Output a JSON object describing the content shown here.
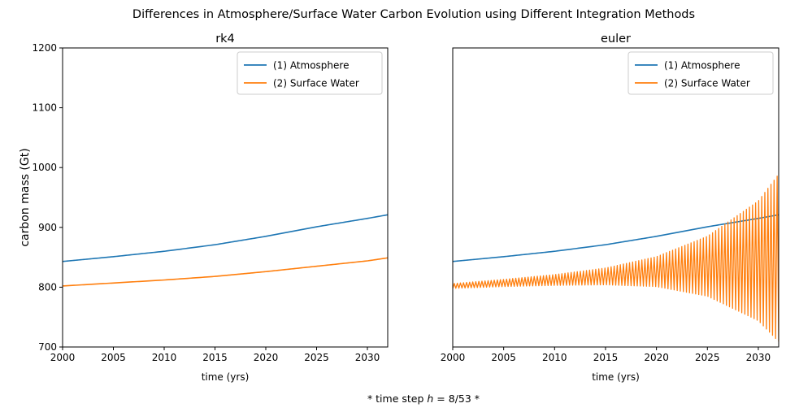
{
  "figure": {
    "suptitle": "Differences in Atmosphere/Surface Water Carbon Evolution using Different Integration Methods",
    "footnote_prefix": "* time step ",
    "footnote_h": "h",
    "footnote_suffix": " = 8/53 *"
  },
  "colors": {
    "atmosphere": "#1f77b4",
    "surface_water": "#ff7f0e"
  },
  "chart_data": [
    {
      "type": "line",
      "title": "rk4",
      "xlabel": "time (yrs)",
      "ylabel": "carbon mass (Gt)",
      "xlim": [
        2000,
        2032
      ],
      "ylim": [
        700,
        1200
      ],
      "xticks": [
        2000,
        2005,
        2010,
        2015,
        2020,
        2025,
        2030
      ],
      "yticks": [
        700,
        800,
        900,
        1000,
        1100,
        1200
      ],
      "legend_position": "top-right",
      "series": [
        {
          "name": "(1) Atmosphere",
          "x": [
            2000,
            2005,
            2010,
            2015,
            2020,
            2025,
            2030,
            2032
          ],
          "values": [
            843,
            851,
            860,
            871,
            885,
            901,
            915,
            921
          ]
        },
        {
          "name": "(2) Surface Water",
          "x": [
            2000,
            2005,
            2010,
            2015,
            2020,
            2025,
            2030,
            2032
          ],
          "values": [
            802,
            807,
            812,
            818,
            826,
            835,
            844,
            849
          ]
        }
      ]
    },
    {
      "type": "line",
      "title": "euler",
      "xlabel": "time (yrs)",
      "ylabel": "",
      "xlim": [
        2000,
        2032
      ],
      "ylim": [
        700,
        1200
      ],
      "xticks": [
        2000,
        2005,
        2010,
        2015,
        2020,
        2025,
        2030
      ],
      "yticks": [],
      "legend_position": "top-right",
      "series": [
        {
          "name": "(1) Atmosphere",
          "x": [
            2000,
            2005,
            2010,
            2015,
            2020,
            2025,
            2030,
            2032
          ],
          "values": [
            843,
            851,
            860,
            871,
            885,
            901,
            915,
            921
          ]
        },
        {
          "name": "(2) Surface Water",
          "oscillating": true,
          "x": [
            2000,
            2005,
            2010,
            2015,
            2020,
            2025,
            2030,
            2032
          ],
          "values": [
            802,
            807,
            812,
            818,
            826,
            835,
            844,
            849
          ],
          "amplitude": [
            4,
            6,
            9,
            14,
            25,
            50,
            100,
            140
          ]
        }
      ]
    }
  ]
}
